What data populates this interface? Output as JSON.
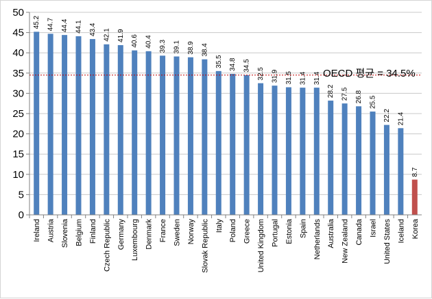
{
  "chart_data": {
    "type": "bar",
    "categories": [
      "Ireland",
      "Austria",
      "Slovenia",
      "Belgium",
      "Finland",
      "Czech Republic",
      "Germany",
      "Luxembourg",
      "Denmark",
      "France",
      "Sweden",
      "Norway",
      "Slovak Republic",
      "Italy",
      "Poland",
      "Greece",
      "United Kingdom",
      "Portugal",
      "Estonia",
      "Spain",
      "Netherlands",
      "Australia",
      "New Zealand",
      "Canada",
      "Israel",
      "United States",
      "Iceland",
      "Korea"
    ],
    "values": [
      45.2,
      44.7,
      44.4,
      44.1,
      43.4,
      42.1,
      41.9,
      40.6,
      40.4,
      39.3,
      39.1,
      38.9,
      38.4,
      35.5,
      34.8,
      34.5,
      32.5,
      31.9,
      31.5,
      31.4,
      31.4,
      28.2,
      27.5,
      26.8,
      25.5,
      22.2,
      21.4,
      8.7
    ],
    "value_labels": [
      "45.2",
      "44.7",
      "44.4",
      "44.1",
      "43.4",
      "42.1",
      "41.9",
      "40.6",
      "40.4",
      "39.3",
      "39.1",
      "38.9",
      "38.4",
      "35.5",
      "34.8",
      "34.5",
      "32.5",
      "31.9",
      "31.5",
      "31.4",
      "31.4",
      "28.2",
      "27.5",
      "26.8",
      "25.5",
      "22.2",
      "21.4",
      "8.7"
    ],
    "y_ticks": [
      "0",
      "5",
      "10",
      "15",
      "20",
      "25",
      "30",
      "35",
      "40",
      "45",
      "50"
    ],
    "ylim": [
      0,
      50
    ],
    "grid": true,
    "colors": {
      "bar": "#4f81bd",
      "highlight": "#c0504d",
      "reference": "#c00000",
      "grid": "#c8c8c8",
      "axis": "#808080"
    },
    "highlight_category": "Korea",
    "reference_line": {
      "value": 34.5,
      "label": "OECD 평균 = 34.5%"
    }
  }
}
